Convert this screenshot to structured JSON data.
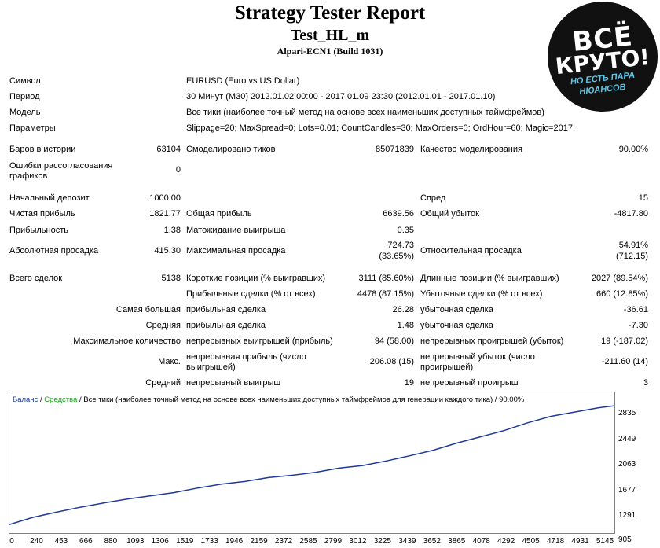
{
  "report": {
    "title": "Strategy Tester Report",
    "subtitle": "Test_HL_m",
    "build": "Alpari-ECN1 (Build 1031)"
  },
  "badge": {
    "line1": "ВСЁ",
    "line2": "КРУТО!",
    "line3": "НО ЕСТЬ ПАРА",
    "line4": "НЮАНСОВ"
  },
  "info": {
    "symbol_label": "Символ",
    "symbol_value": "EURUSD (Euro vs US Dollar)",
    "period_label": "Период",
    "period_value": "30 Минут (M30) 2012.01.02 00:00 - 2017.01.09 23:30 (2012.01.01 - 2017.01.10)",
    "model_label": "Модель",
    "model_value": "Все тики (наиболее точный метод на основе всех наименьших доступных таймфреймов)",
    "params_label": "Параметры",
    "params_value": "Slippage=20; MaxSpread=0; Lots=0.01; CountCandles=30; MaxOrders=0; OrdHour=60; Magic=2017;"
  },
  "stats": {
    "bars_label": "Баров в истории",
    "bars_value": "63104",
    "ticks_label": "Смоделировано тиков",
    "ticks_value": "85071839",
    "quality_label": "Качество моделирования",
    "quality_value": "90.00%",
    "mismatch_label": "Ошибки рассогласования графиков",
    "mismatch_value": "0",
    "deposit_label": "Начальный депозит",
    "deposit_value": "1000.00",
    "spread_label": "Спред",
    "spread_value": "15",
    "netprofit_label": "Чистая прибыль",
    "netprofit_value": "1821.77",
    "grossprofit_label": "Общая прибыль",
    "grossprofit_value": "6639.56",
    "grossloss_label": "Общий убыток",
    "grossloss_value": "-4817.80",
    "pf_label": "Прибыльность",
    "pf_value": "1.38",
    "expect_label": "Матожидание выигрыша",
    "expect_value": "0.35",
    "absdd_label": "Абсолютная просадка",
    "absdd_value": "415.30",
    "maxdd_label": "Максимальная просадка",
    "maxdd_value1": "724.73",
    "maxdd_value2": "(33.65%)",
    "reldd_label": "Относительная просадка",
    "reldd_value1": "54.91%",
    "reldd_value2": "(712.15)",
    "trades_label": "Всего сделок",
    "trades_value": "5138",
    "short_label": "Короткие позиции (% выигравших)",
    "short_value": "3111 (85.60%)",
    "long_label": "Длинные позиции (% выигравших)",
    "long_value": "2027 (89.54%)",
    "profit_trades_label": "Прибыльные сделки (% от всех)",
    "profit_trades_value": "4478 (87.15%)",
    "loss_trades_label": "Убыточные сделки (% от всех)",
    "loss_trades_value": "660 (12.85%)",
    "largest_label": "Самая большая",
    "largest_profit_label": "прибыльная сделка",
    "largest_profit_value": "26.28",
    "largest_loss_label": "убыточная сделка",
    "largest_loss_value": "-36.61",
    "average_label": "Средняя",
    "average_profit_label": "прибыльная сделка",
    "average_profit_value": "1.48",
    "average_loss_label": "убыточная сделка",
    "average_loss_value": "-7.30",
    "maxcount_label": "Максимальное количество",
    "maxcount_wins_label": "непрерывных выигрышей (прибыль)",
    "maxcount_wins_value": "94 (58.00)",
    "maxcount_losses_label": "непрерывных проигрышей (убыток)",
    "maxcount_losses_value": "19 (-187.02)",
    "max_label": "Макс.",
    "max_profit_label": "непрерывная прибыль (число выигрышей)",
    "max_profit_value": "206.08 (15)",
    "max_loss_label": "непрерывный убыток (число проигрышей)",
    "max_loss_value": "-211.60 (14)",
    "avg_label": "Средний",
    "avg_wins_label": "непрерывный выигрыш",
    "avg_wins_value": "19",
    "avg_losses_label": "непрерывный проигрыш",
    "avg_losses_value": "3"
  },
  "colors": {
    "balance": "#1f3a9a",
    "equity": "#1aa51a"
  },
  "chart_data": {
    "type": "line",
    "legend": {
      "balance": "Баланс",
      "equity": "Средства",
      "rest": "Все тики (наиболее точный метод на основе всех наименьших доступных таймфреймов для генерации каждого тика)",
      "quality": "90.00%"
    },
    "y_ticks": [
      "2835",
      "2449",
      "2063",
      "1677",
      "1291",
      "905"
    ],
    "x_ticks": [
      "0",
      "240",
      "453",
      "666",
      "880",
      "1093",
      "1306",
      "1519",
      "1733",
      "1946",
      "2159",
      "2372",
      "2585",
      "2799",
      "3012",
      "3225",
      "3439",
      "3652",
      "3865",
      "4078",
      "4292",
      "4505",
      "4718",
      "4931",
      "5145"
    ],
    "ylim": [
      905,
      2835
    ],
    "xlim": [
      0,
      5138
    ],
    "series": [
      {
        "name": "Баланс",
        "x": [
          0,
          200,
          400,
          600,
          800,
          1000,
          1200,
          1400,
          1600,
          1800,
          2000,
          2200,
          2400,
          2600,
          2800,
          3000,
          3200,
          3400,
          3600,
          3800,
          4000,
          4200,
          4400,
          4600,
          4800,
          5000,
          5138
        ],
        "y": [
          1000,
          1110,
          1190,
          1265,
          1330,
          1390,
          1440,
          1490,
          1560,
          1620,
          1660,
          1720,
          1755,
          1800,
          1865,
          1905,
          1975,
          2055,
          2140,
          2250,
          2345,
          2440,
          2560,
          2660,
          2725,
          2790,
          2822
        ]
      }
    ]
  }
}
